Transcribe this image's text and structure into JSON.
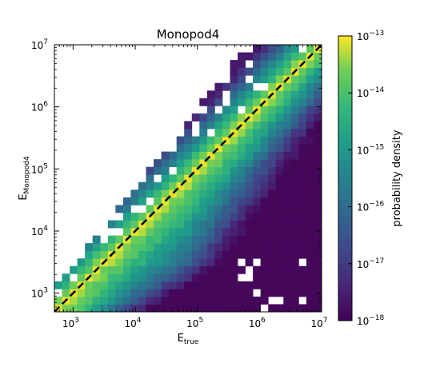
{
  "chart_data": {
    "type": "heatmap",
    "title": "Monopod4",
    "xlabel_main": "E",
    "xlabel_sub": "true",
    "ylabel_main": "E",
    "ylabel_sub": "Monopod4",
    "x_scale": "log",
    "y_scale": "log",
    "xlim": [
      500,
      10000000
    ],
    "ylim": [
      500,
      10000000
    ],
    "x_ticks": [
      {
        "value": 1000,
        "base": "10",
        "exp": "3"
      },
      {
        "value": 10000,
        "base": "10",
        "exp": "4"
      },
      {
        "value": 100000,
        "base": "10",
        "exp": "5"
      },
      {
        "value": 1000000,
        "base": "10",
        "exp": "6"
      },
      {
        "value": 10000000,
        "base": "10",
        "exp": "7"
      }
    ],
    "y_ticks": [
      {
        "value": 1000,
        "base": "10",
        "exp": "3"
      },
      {
        "value": 10000,
        "base": "10",
        "exp": "4"
      },
      {
        "value": 100000,
        "base": "10",
        "exp": "5"
      },
      {
        "value": 1000000,
        "base": "10",
        "exp": "6"
      },
      {
        "value": 10000000,
        "base": "10",
        "exp": "7"
      }
    ],
    "grid": false,
    "reference_line": {
      "style": "dashed",
      "color": "#000000",
      "from": [
        500,
        500
      ],
      "to": [
        10000000,
        10000000
      ]
    },
    "bins_per_axis": 35,
    "colormap": "viridis",
    "colorbar": {
      "label": "probability density",
      "scale": "log",
      "range": [
        1e-18,
        1e-13
      ],
      "ticks": [
        {
          "value": 1e-13,
          "base": "10",
          "exp": "−13"
        },
        {
          "value": 1e-14,
          "base": "10",
          "exp": "−14"
        },
        {
          "value": 1e-15,
          "base": "10",
          "exp": "−15"
        },
        {
          "value": 1e-16,
          "base": "10",
          "exp": "−16"
        },
        {
          "value": 1e-17,
          "base": "10",
          "exp": "−17"
        },
        {
          "value": 1e-18,
          "base": "10",
          "exp": "−18"
        }
      ]
    }
  }
}
